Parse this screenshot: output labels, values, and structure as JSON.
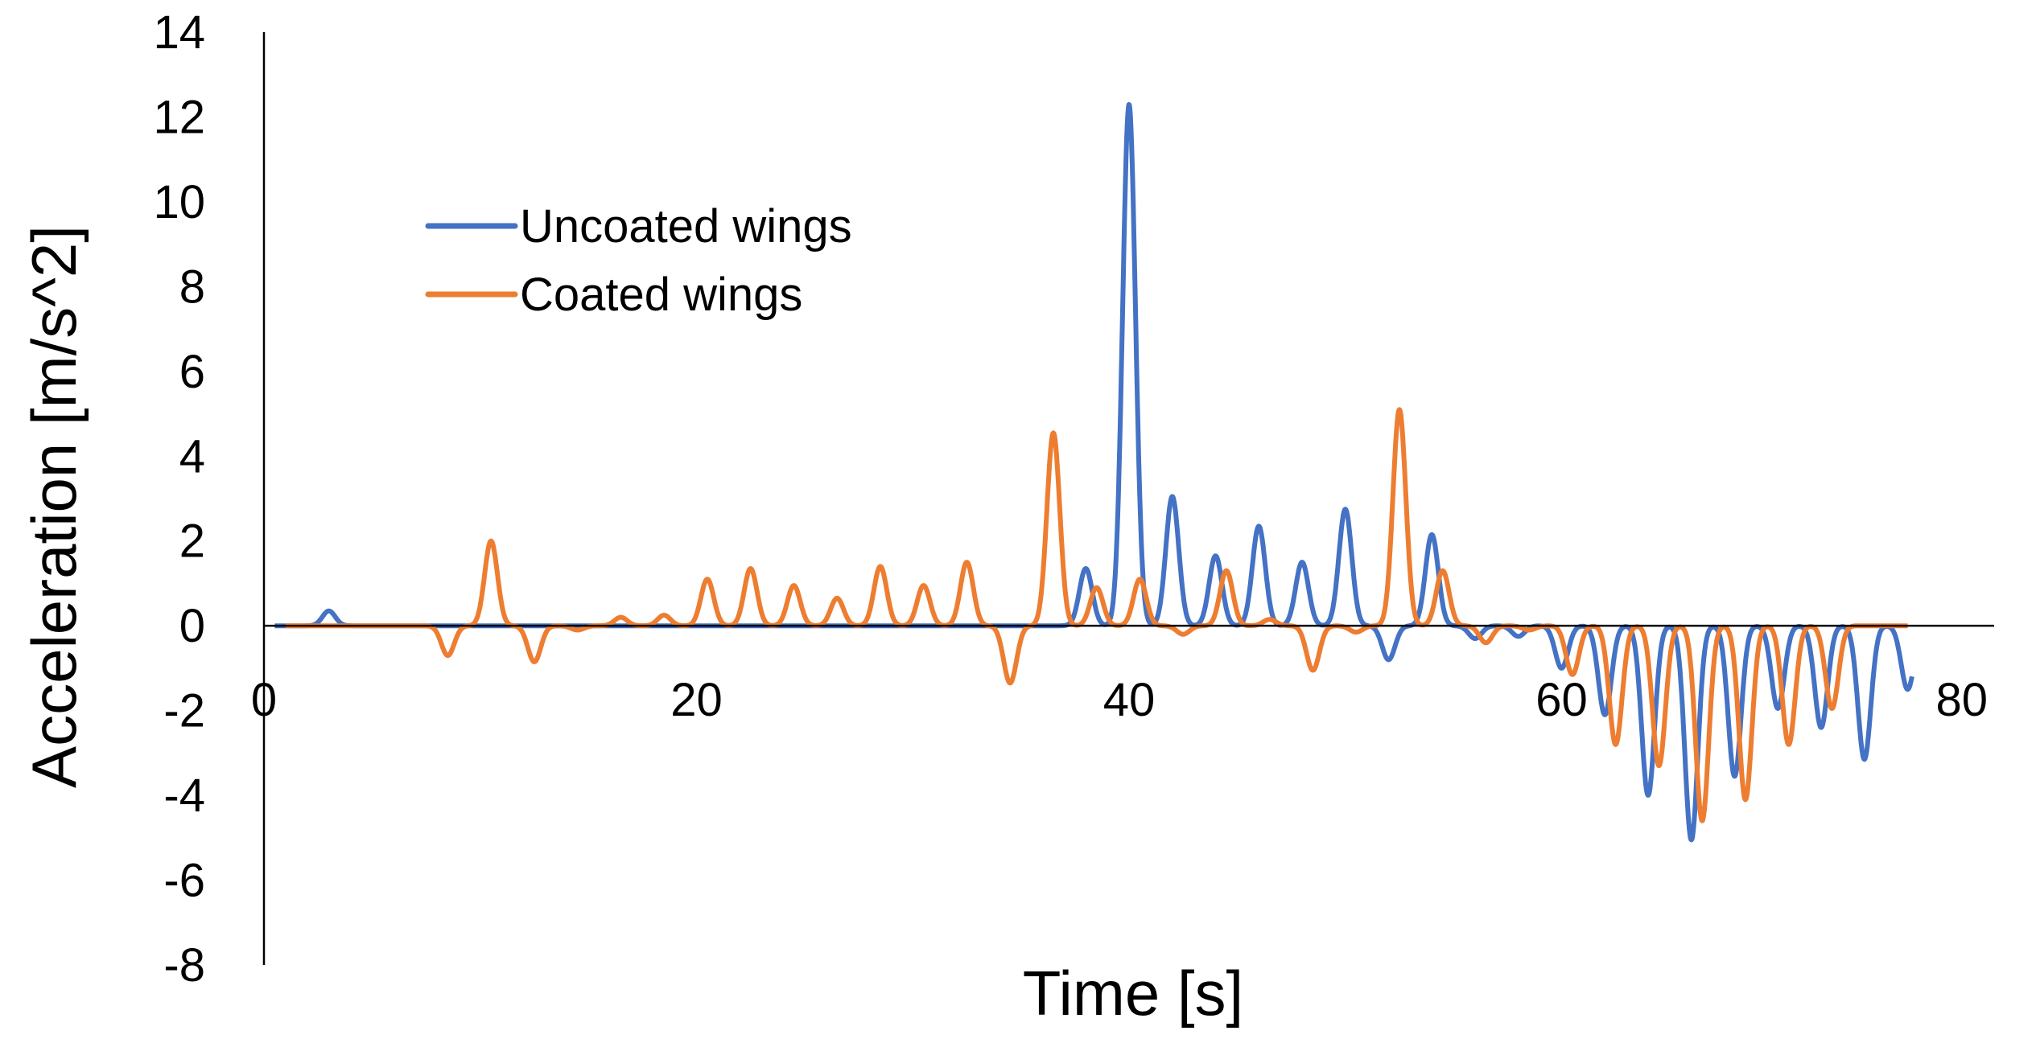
{
  "chart_data": {
    "type": "line",
    "title": "",
    "xlabel": "Time [s]",
    "ylabel": "Acceleration  [m/s^2]",
    "xlim": [
      0,
      80
    ],
    "ylim": [
      -8,
      14
    ],
    "x_ticks": [
      0,
      20,
      40,
      60,
      80
    ],
    "x_tick_labels": [
      "0",
      "20",
      "40",
      "60",
      "80"
    ],
    "y_ticks": [
      14,
      12,
      10,
      8,
      6,
      4,
      2,
      0,
      -2,
      -4,
      -6,
      -8
    ],
    "y_tick_labels": [
      "14",
      "12",
      "10",
      "8",
      "6",
      "4",
      "2",
      "0",
      "-2",
      "-4",
      "-6",
      "-8"
    ],
    "grid": false,
    "legend_position": "upper-left",
    "series": [
      {
        "name": "Uncoated wings",
        "color": "#4472C4",
        "x_range": [
          0.5,
          76.2
        ],
        "pulses": [
          {
            "t": 3.0,
            "a": 0.35
          },
          {
            "t": 38.0,
            "a": 1.35
          },
          {
            "t": 40.0,
            "a": 12.3
          },
          {
            "t": 42.0,
            "a": 3.05
          },
          {
            "t": 44.0,
            "a": 1.65
          },
          {
            "t": 46.0,
            "a": 2.35
          },
          {
            "t": 48.0,
            "a": 1.5
          },
          {
            "t": 50.0,
            "a": 2.75
          },
          {
            "t": 52.0,
            "a": -0.8
          },
          {
            "t": 54.0,
            "a": 2.15
          },
          {
            "t": 56.0,
            "a": -0.3
          },
          {
            "t": 58.0,
            "a": -0.25
          },
          {
            "t": 60.0,
            "a": -1.0
          },
          {
            "t": 62.0,
            "a": -2.1
          },
          {
            "t": 64.0,
            "a": -4.0
          },
          {
            "t": 66.0,
            "a": -5.05
          },
          {
            "t": 68.0,
            "a": -3.55
          },
          {
            "t": 70.0,
            "a": -1.95
          },
          {
            "t": 72.0,
            "a": -2.4
          },
          {
            "t": 74.0,
            "a": -3.15
          },
          {
            "t": 76.0,
            "a": -1.5
          }
        ]
      },
      {
        "name": "Coated wings",
        "color": "#ED7D31",
        "x_range": [
          1.0,
          76.0
        ],
        "pulses": [
          {
            "t": 8.5,
            "a": -0.7
          },
          {
            "t": 10.5,
            "a": 2.0
          },
          {
            "t": 12.5,
            "a": -0.85
          },
          {
            "t": 14.5,
            "a": -0.1
          },
          {
            "t": 16.5,
            "a": 0.2
          },
          {
            "t": 18.5,
            "a": 0.25
          },
          {
            "t": 20.5,
            "a": 1.1
          },
          {
            "t": 22.5,
            "a": 1.35
          },
          {
            "t": 24.5,
            "a": 0.95
          },
          {
            "t": 26.5,
            "a": 0.65
          },
          {
            "t": 28.5,
            "a": 1.4
          },
          {
            "t": 30.5,
            "a": 0.95
          },
          {
            "t": 32.5,
            "a": 1.5
          },
          {
            "t": 34.5,
            "a": -1.35
          },
          {
            "t": 36.5,
            "a": 4.55
          },
          {
            "t": 38.5,
            "a": 0.9
          },
          {
            "t": 40.5,
            "a": 1.1
          },
          {
            "t": 42.5,
            "a": -0.2
          },
          {
            "t": 44.5,
            "a": 1.3
          },
          {
            "t": 46.5,
            "a": 0.15
          },
          {
            "t": 48.5,
            "a": -1.05
          },
          {
            "t": 50.5,
            "a": -0.15
          },
          {
            "t": 52.5,
            "a": 5.1
          },
          {
            "t": 54.5,
            "a": 1.3
          },
          {
            "t": 56.5,
            "a": -0.4
          },
          {
            "t": 58.5,
            "a": -0.1
          },
          {
            "t": 60.5,
            "a": -1.15
          },
          {
            "t": 62.5,
            "a": -2.8
          },
          {
            "t": 64.5,
            "a": -3.3
          },
          {
            "t": 66.5,
            "a": -4.6
          },
          {
            "t": 68.5,
            "a": -4.1
          },
          {
            "t": 70.5,
            "a": -2.8
          },
          {
            "t": 72.5,
            "a": -1.95
          }
        ]
      }
    ]
  }
}
